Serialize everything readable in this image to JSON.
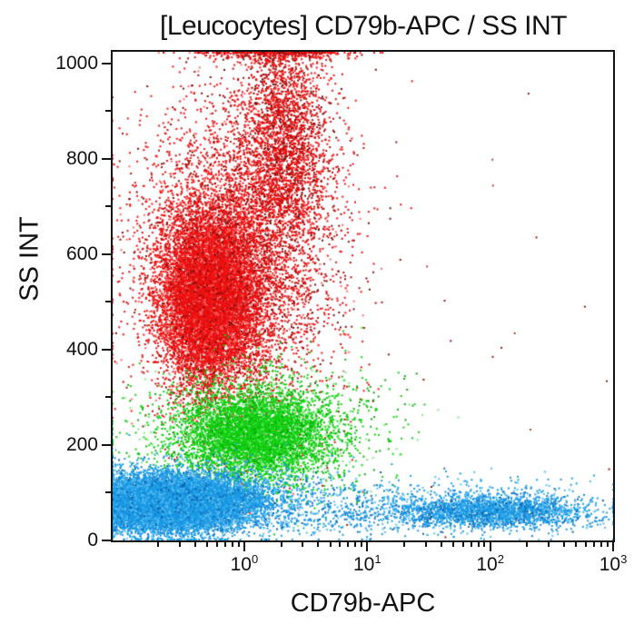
{
  "title": "[Leucocytes] CD79b-APC / SS INT",
  "chart_data": {
    "type": "scatter",
    "subtype": "flow-cytometry-dot-plot",
    "title": "[Leucocytes] CD79b-APC / SS INT",
    "xlabel": "CD79b-APC",
    "ylabel": "SS INT",
    "x_scale": "log",
    "x_range": [
      0.085,
      1000
    ],
    "y_range": [
      0,
      1024
    ],
    "grid": false,
    "legend": false,
    "x_ticks": [
      {
        "value": 1,
        "base": "10",
        "exp": "0"
      },
      {
        "value": 10,
        "base": "10",
        "exp": "1"
      },
      {
        "value": 100,
        "base": "10",
        "exp": "2"
      },
      {
        "value": 1000,
        "base": "10",
        "exp": "3"
      }
    ],
    "x_minor_ticks": [
      0.2,
      0.3,
      0.4,
      0.5,
      0.6,
      0.7,
      0.8,
      0.9,
      2,
      3,
      4,
      5,
      6,
      7,
      8,
      9,
      20,
      30,
      40,
      50,
      60,
      70,
      80,
      90,
      200,
      300,
      400,
      500,
      600,
      700,
      800,
      900
    ],
    "y_ticks": [
      {
        "value": 0,
        "label": "0"
      },
      {
        "value": 200,
        "label": "200"
      },
      {
        "value": 400,
        "label": "400"
      },
      {
        "value": 600,
        "label": "600"
      },
      {
        "value": 800,
        "label": "800"
      },
      {
        "value": 1000,
        "label": "1000"
      }
    ],
    "y_minor_ticks": [
      100,
      300,
      500,
      700,
      900
    ],
    "populations": [
      {
        "name": "granulocytes-core",
        "n": 10000,
        "cx_log": -0.28,
        "cy": 510,
        "sx_log": 0.2,
        "sy": 92,
        "colors": [
          [
            "#ee1111",
            7
          ],
          [
            "#d40f0f",
            2
          ],
          [
            "#ff5a5a",
            1
          ]
        ]
      },
      {
        "name": "granulocytes-halo",
        "n": 5200,
        "cx_log": -0.05,
        "cy": 590,
        "sx_log": 0.4,
        "sy": 175,
        "colors": [
          [
            "#ee1111",
            6
          ],
          [
            "#b30d0d",
            2
          ],
          [
            "#ff6a6a",
            1
          ],
          [
            "#7a0d0d",
            1
          ]
        ]
      },
      {
        "name": "granulocytes-upper-column",
        "n": 2600,
        "cx_log": 0.33,
        "cy": 840,
        "sx_log": 0.18,
        "sy": 130,
        "colors": [
          [
            "#ee1111",
            5
          ],
          [
            "#b30d0d",
            2
          ],
          [
            "#700d0d",
            1
          ]
        ]
      },
      {
        "name": "granulocytes-top-pileup",
        "n": 300,
        "cx_log": 0.22,
        "cy": 1020,
        "sx_log": 0.3,
        "sy": 8,
        "colors": [
          [
            "#ee1111",
            5
          ],
          [
            "#8f0d0d",
            2
          ]
        ]
      },
      {
        "name": "scattered-debris-right",
        "n": 26,
        "cx_log": 1.6,
        "cy": 420,
        "sx_log": 0.75,
        "sy": 230,
        "colors": [
          [
            "#8f1b1b",
            3
          ],
          [
            "#b04040",
            1
          ]
        ]
      },
      {
        "name": "monocytes-core",
        "n": 4800,
        "cx_log": 0.08,
        "cy": 222,
        "sx_log": 0.3,
        "sy": 46,
        "colors": [
          [
            "#0fd20f",
            6
          ],
          [
            "#0bb80b",
            2
          ],
          [
            "#67e467",
            1
          ]
        ]
      },
      {
        "name": "monocytes-halo",
        "n": 1400,
        "cx_log": 0.15,
        "cy": 235,
        "sx_log": 0.52,
        "sy": 72,
        "colors": [
          [
            "#0fd20f",
            4
          ],
          [
            "#0aa80a",
            2
          ],
          [
            "#7fe87f",
            1
          ]
        ]
      },
      {
        "name": "lymphocytes-band",
        "n": 15000,
        "cx_log": -0.62,
        "cy": 78,
        "sx_log": 0.34,
        "sy": 27,
        "colors": [
          [
            "#1a9be6",
            6
          ],
          [
            "#1478c8",
            2
          ],
          [
            "#55bdf2",
            2
          ]
        ]
      },
      {
        "name": "lymphocytes-halo",
        "n": 1600,
        "cx_log": -0.45,
        "cy": 85,
        "sx_log": 0.55,
        "sy": 42,
        "colors": [
          [
            "#1a9be6",
            5
          ],
          [
            "#55bdf2",
            2
          ],
          [
            "#0b5fa5",
            1
          ]
        ]
      },
      {
        "name": "mid-scatter",
        "n": 550,
        "cx_log": 0.85,
        "cy": 65,
        "sx_log": 0.55,
        "sy": 28,
        "colors": [
          [
            "#1a9be6",
            5
          ],
          [
            "#1478c8",
            2
          ],
          [
            "#55bdf2",
            2
          ]
        ]
      },
      {
        "name": "b-cells-cd79b-positive",
        "n": 2300,
        "cx_log": 2.02,
        "cy": 60,
        "sx_log": 0.38,
        "sy": 17,
        "colors": [
          [
            "#1a9be6",
            6
          ],
          [
            "#1478c8",
            2
          ],
          [
            "#55bdf2",
            2
          ],
          [
            "#0b5fa5",
            1
          ]
        ]
      },
      {
        "name": "b-cells-halo",
        "n": 350,
        "cx_log": 2.0,
        "cy": 78,
        "sx_log": 0.5,
        "sy": 30,
        "colors": [
          [
            "#1a9be6",
            5
          ],
          [
            "#55bdf2",
            2
          ]
        ]
      }
    ]
  }
}
